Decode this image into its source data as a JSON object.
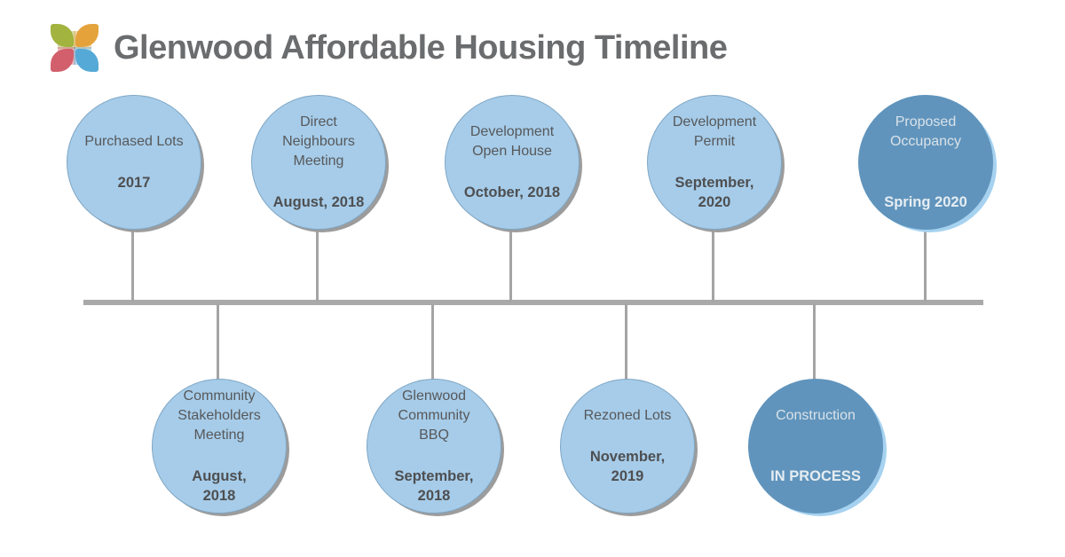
{
  "header": {
    "title": "Glenwood Affordable Housing Timeline",
    "logo": "four-petal-flower-logo"
  },
  "palette": {
    "light_circle": "#a6cce9",
    "dark_circle": "#6094bc",
    "light_circle_shadow": "#9c9c9c",
    "dark_circle_shadow": "#a6d2f0",
    "axis_line": "#a9a9a9",
    "text_dark": "#57585a",
    "text_light": "#e6edf2",
    "title_text": "#6b6c6e",
    "logo_green": "#a3b33f",
    "logo_orange": "#e5a33c",
    "logo_red": "#d2606c",
    "logo_blue": "#55a9d6"
  },
  "timeline": {
    "events": [
      {
        "id": "purchased-lots",
        "row": "top",
        "variant": "light",
        "label_lines": [
          "Purchased Lots"
        ],
        "date_lines": [
          "2017"
        ]
      },
      {
        "id": "direct-neighbours-meeting",
        "row": "top",
        "variant": "light",
        "label_lines": [
          "Direct",
          "Neighbours",
          "Meeting"
        ],
        "date_lines": [
          "August, 2018"
        ]
      },
      {
        "id": "development-open-house",
        "row": "top",
        "variant": "light",
        "label_lines": [
          "Development",
          "Open House"
        ],
        "date_lines": [
          "October, 2018"
        ]
      },
      {
        "id": "development-permit",
        "row": "top",
        "variant": "light",
        "label_lines": [
          "Development",
          "Permit"
        ],
        "date_lines": [
          "September,",
          "2020"
        ]
      },
      {
        "id": "proposed-occupancy",
        "row": "top",
        "variant": "dark",
        "label_lines": [
          "Proposed",
          "Occupancy"
        ],
        "date_lines": [
          "Spring 2020"
        ]
      },
      {
        "id": "community-stakeholders-meeting",
        "row": "bottom",
        "variant": "light",
        "label_lines": [
          "Community",
          "Stakeholders",
          "Meeting"
        ],
        "date_lines": [
          "August,",
          "2018"
        ]
      },
      {
        "id": "glenwood-community-bbq",
        "row": "bottom",
        "variant": "light",
        "label_lines": [
          "Glenwood",
          "Community",
          "BBQ"
        ],
        "date_lines": [
          "September,",
          "2018"
        ]
      },
      {
        "id": "rezoned-lots",
        "row": "bottom",
        "variant": "light",
        "label_lines": [
          "Rezoned Lots"
        ],
        "date_lines": [
          "November,",
          "2019"
        ]
      },
      {
        "id": "construction",
        "row": "bottom",
        "variant": "dark",
        "label_lines": [
          "Construction"
        ],
        "date_lines": [
          "IN PROCESS"
        ]
      }
    ]
  }
}
